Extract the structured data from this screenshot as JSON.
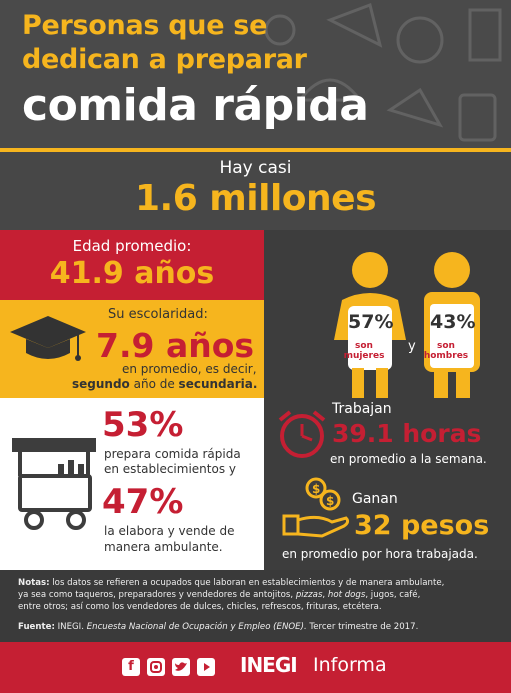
{
  "header": {
    "title_line1": "Personas que se",
    "title_line2": "dedican a preparar",
    "title_line3": "comida rápida"
  },
  "total": {
    "prefix": "Hay casi",
    "value": "1.6 millones"
  },
  "age": {
    "label": "Edad promedio:",
    "value": "41.9 años"
  },
  "schooling": {
    "label": "Su escolaridad:",
    "value": "7.9 años",
    "line1": "en promedio, es decir,",
    "line2_bold": "segundo",
    "line2_rest": " año de ",
    "line2_bold2": "secundaria."
  },
  "gender": {
    "women_pct": "57%",
    "women_label": "son mujeres",
    "men_pct": "43%",
    "men_label": "son hombres",
    "and": "y"
  },
  "establishments": {
    "pct_fixed": "53%",
    "fixed_line1": "prepara comida rápida",
    "fixed_line2": "en establecimientos y",
    "pct_street": "47%",
    "street_line1": "la elabora y vende de",
    "street_line2": "manera ambulante."
  },
  "hours": {
    "label": "Trabajan",
    "value": "39.1 horas",
    "sub": "en promedio a la semana."
  },
  "income": {
    "label": "Ganan",
    "value": "32 pesos",
    "sub": "en promedio por hora trabajada."
  },
  "notes": {
    "label": "Notas:",
    "line1": " los datos se refieren a ocupados que laboran en establecimientos y de manera ambulante,",
    "line2a": "ya sea como taqueros, preparadores y vendedores de antojitos, ",
    "line2b": "pizzas",
    "line2c": ", ",
    "line2d": "hot dogs",
    "line2e": ", jugos, café,",
    "line3": "entre otros; así como los vendedores de dulces, chicles, refrescos, frituras, etcétera.",
    "source_label": "Fuente:",
    "source_org": " INEGI. ",
    "source_title": "Encuesta Nacional de Ocupación y Empleo (ENOE).",
    "source_rest": " Tercer trimestre de 2017."
  },
  "footer": {
    "brand": "INEGI",
    "suffix": "Informa",
    "social_icons": [
      "facebook-icon",
      "instagram-icon",
      "twitter-icon",
      "youtube-icon"
    ]
  },
  "colors": {
    "yellow": "#f6b51e",
    "red": "#c51f33",
    "dark": "#3d3d3d"
  }
}
